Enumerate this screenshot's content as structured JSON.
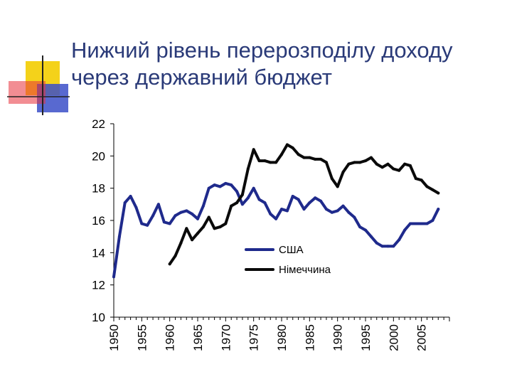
{
  "slide": {
    "title_line1": "Нижчий рівень перерозподілу доходу",
    "title_line2": "через державний бюджет"
  },
  "chart_data": {
    "type": "line",
    "title": "",
    "xlabel": "",
    "ylabel": "",
    "xlim": [
      1950,
      2010
    ],
    "ylim": [
      10,
      22
    ],
    "y_ticks": [
      "10",
      "12",
      "14",
      "16",
      "18",
      "20",
      "22"
    ],
    "x_ticks": [
      "1950",
      "1955",
      "1960",
      "1965",
      "1970",
      "1975",
      "1980",
      "1985",
      "1990",
      "1995",
      "2000",
      "2005"
    ],
    "grid": false,
    "legend_placement": "center-right",
    "series": [
      {
        "name": "США",
        "color": "#1f2a8c",
        "x": [
          1950,
          1951,
          1952,
          1953,
          1954,
          1955,
          1956,
          1957,
          1958,
          1959,
          1960,
          1961,
          1962,
          1963,
          1964,
          1965,
          1966,
          1967,
          1968,
          1969,
          1970,
          1971,
          1972,
          1973,
          1974,
          1975,
          1976,
          1977,
          1978,
          1979,
          1980,
          1981,
          1982,
          1983,
          1984,
          1985,
          1986,
          1987,
          1988,
          1989,
          1990,
          1991,
          1992,
          1993,
          1994,
          1995,
          1996,
          1997,
          1998,
          1999,
          2000,
          2001,
          2002,
          2003,
          2004,
          2005,
          2006,
          2007,
          2008
        ],
        "values": [
          12.5,
          15.0,
          17.1,
          17.5,
          16.8,
          15.8,
          15.7,
          16.3,
          17.0,
          15.9,
          15.8,
          16.3,
          16.5,
          16.6,
          16.4,
          16.1,
          16.9,
          18.0,
          18.2,
          18.1,
          18.3,
          18.2,
          17.8,
          17.0,
          17.4,
          18.0,
          17.3,
          17.1,
          16.4,
          16.1,
          16.7,
          16.6,
          17.5,
          17.3,
          16.7,
          17.1,
          17.4,
          17.2,
          16.7,
          16.5,
          16.6,
          16.9,
          16.5,
          16.2,
          15.6,
          15.4,
          15.0,
          14.6,
          14.4,
          14.4,
          14.4,
          14.8,
          15.4,
          15.8,
          15.8,
          15.8,
          15.8,
          16.0,
          16.7
        ]
      },
      {
        "name": "Німеччина",
        "color": "#0a0a0a",
        "x": [
          1960,
          1961,
          1962,
          1963,
          1964,
          1965,
          1966,
          1967,
          1968,
          1969,
          1970,
          1971,
          1972,
          1973,
          1974,
          1975,
          1976,
          1977,
          1978,
          1979,
          1980,
          1981,
          1982,
          1983,
          1984,
          1985,
          1986,
          1987,
          1988,
          1989,
          1990,
          1991,
          1992,
          1993,
          1994,
          1995,
          1996,
          1997,
          1998,
          1999,
          2000,
          2001,
          2002,
          2003,
          2004,
          2005,
          2006,
          2007,
          2008
        ],
        "values": [
          13.3,
          13.8,
          14.6,
          15.5,
          14.8,
          15.2,
          15.6,
          16.2,
          15.5,
          15.6,
          15.8,
          16.9,
          17.1,
          17.6,
          19.2,
          20.4,
          19.7,
          19.7,
          19.6,
          19.6,
          20.1,
          20.7,
          20.5,
          20.1,
          19.9,
          19.9,
          19.8,
          19.8,
          19.6,
          18.6,
          18.1,
          19.0,
          19.5,
          19.6,
          19.6,
          19.7,
          19.9,
          19.5,
          19.3,
          19.5,
          19.2,
          19.1,
          19.5,
          19.4,
          18.6,
          18.5,
          18.1,
          17.9,
          17.7
        ]
      }
    ]
  }
}
